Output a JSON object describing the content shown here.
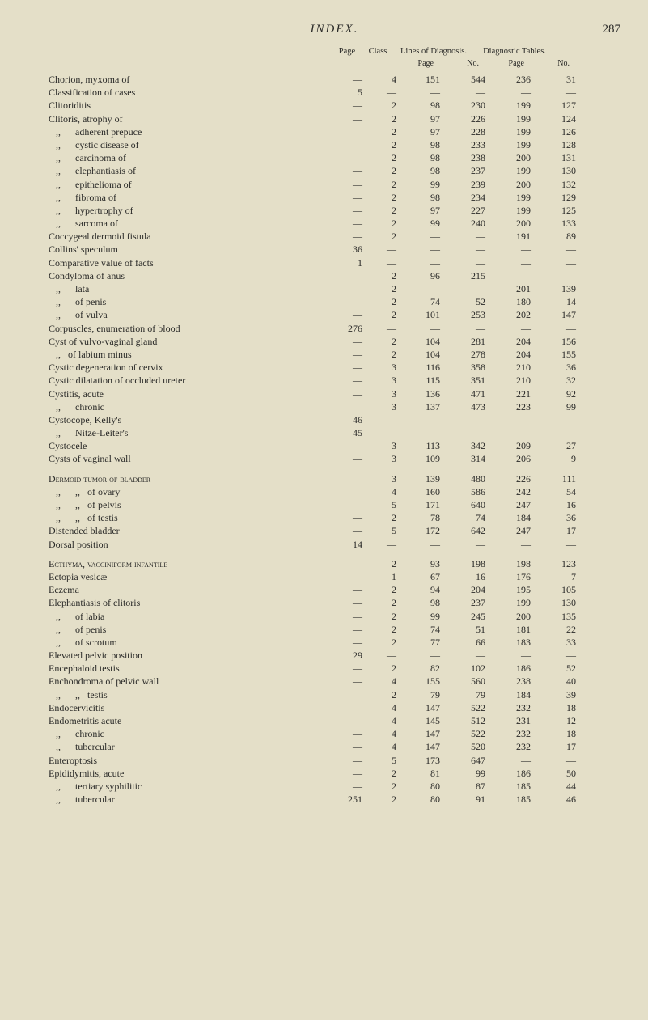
{
  "running_head": {
    "title": "INDEX.",
    "folio": "287"
  },
  "column_heads": {
    "page": "Page",
    "class": "Class",
    "lines_of_diagnosis": "Lines of Diagnosis.",
    "diagnostic_tables": "Diagnostic Tables.",
    "sub_page": "Page",
    "sub_no": "No."
  },
  "rows": [
    {
      "term": "Chorion, myxoma of",
      "page": "—",
      "class": "4",
      "dp": "151",
      "dn": "544",
      "tp": "236",
      "tn": "31"
    },
    {
      "term": "Classification of cases",
      "page": "5",
      "class": "—",
      "dp": "—",
      "dn": "—",
      "tp": "—",
      "tn": "—"
    },
    {
      "term": "Clitoriditis",
      "page": "—",
      "class": "2",
      "dp": "98",
      "dn": "230",
      "tp": "199",
      "tn": "127"
    },
    {
      "term": "Clitoris, atrophy of",
      "page": "—",
      "class": "2",
      "dp": "97",
      "dn": "226",
      "tp": "199",
      "tn": "124"
    },
    {
      "term": "   ,,      adherent prepuce",
      "page": "—",
      "class": "2",
      "dp": "97",
      "dn": "228",
      "tp": "199",
      "tn": "126"
    },
    {
      "term": "   ,,      cystic disease of",
      "page": "—",
      "class": "2",
      "dp": "98",
      "dn": "233",
      "tp": "199",
      "tn": "128"
    },
    {
      "term": "   ,,      carcinoma of",
      "page": "—",
      "class": "2",
      "dp": "98",
      "dn": "238",
      "tp": "200",
      "tn": "131"
    },
    {
      "term": "   ,,      elephantiasis of",
      "page": "—",
      "class": "2",
      "dp": "98",
      "dn": "237",
      "tp": "199",
      "tn": "130"
    },
    {
      "term": "   ,,      epithelioma of",
      "page": "—",
      "class": "2",
      "dp": "99",
      "dn": "239",
      "tp": "200",
      "tn": "132"
    },
    {
      "term": "   ,,      fibroma of",
      "page": "—",
      "class": "2",
      "dp": "98",
      "dn": "234",
      "tp": "199",
      "tn": "129"
    },
    {
      "term": "   ,,      hypertrophy of",
      "page": "—",
      "class": "2",
      "dp": "97",
      "dn": "227",
      "tp": "199",
      "tn": "125"
    },
    {
      "term": "   ,,      sarcoma of",
      "page": "—",
      "class": "2",
      "dp": "99",
      "dn": "240",
      "tp": "200",
      "tn": "133"
    },
    {
      "term": "Coccygeal dermoid fistula",
      "page": "—",
      "class": "2",
      "dp": "—",
      "dn": "—",
      "tp": "191",
      "tn": "89"
    },
    {
      "term": "Collins' speculum",
      "page": "36",
      "class": "—",
      "dp": "—",
      "dn": "—",
      "tp": "—",
      "tn": "—"
    },
    {
      "term": "Comparative value of facts",
      "page": "1",
      "class": "—",
      "dp": "—",
      "dn": "—",
      "tp": "—",
      "tn": "—"
    },
    {
      "term": "Condyloma of anus",
      "page": "—",
      "class": "2",
      "dp": "96",
      "dn": "215",
      "tp": "—",
      "tn": "—"
    },
    {
      "term": "   ,,      lata",
      "page": "—",
      "class": "2",
      "dp": "—",
      "dn": "—",
      "tp": "201",
      "tn": "139"
    },
    {
      "term": "   ,,      of penis",
      "page": "—",
      "class": "2",
      "dp": "74",
      "dn": "52",
      "tp": "180",
      "tn": "14"
    },
    {
      "term": "   ,,      of vulva",
      "page": "—",
      "class": "2",
      "dp": "101",
      "dn": "253",
      "tp": "202",
      "tn": "147"
    },
    {
      "term": "Corpuscles, enumeration of blood",
      "page": "276",
      "class": "—",
      "dp": "—",
      "dn": "—",
      "tp": "—",
      "tn": "—"
    },
    {
      "term": "Cyst of vulvo-vaginal gland",
      "page": "—",
      "class": "2",
      "dp": "104",
      "dn": "281",
      "tp": "204",
      "tn": "156"
    },
    {
      "term": "   ,,   of labium minus",
      "page": "—",
      "class": "2",
      "dp": "104",
      "dn": "278",
      "tp": "204",
      "tn": "155"
    },
    {
      "term": "Cystic degeneration of cervix",
      "page": "—",
      "class": "3",
      "dp": "116",
      "dn": "358",
      "tp": "210",
      "tn": "36"
    },
    {
      "term": "Cystic dilatation of occluded ureter",
      "page": "—",
      "class": "3",
      "dp": "115",
      "dn": "351",
      "tp": "210",
      "tn": "32"
    },
    {
      "term": "Cystitis, acute",
      "page": "—",
      "class": "3",
      "dp": "136",
      "dn": "471",
      "tp": "221",
      "tn": "92"
    },
    {
      "term": "   ,,      chronic",
      "page": "—",
      "class": "3",
      "dp": "137",
      "dn": "473",
      "tp": "223",
      "tn": "99"
    },
    {
      "term": "Cystocope, Kelly's",
      "page": "46",
      "class": "—",
      "dp": "—",
      "dn": "—",
      "tp": "—",
      "tn": "—"
    },
    {
      "term": "   ,,      Nitze-Leiter's",
      "page": "45",
      "class": "—",
      "dp": "—",
      "dn": "—",
      "tp": "—",
      "tn": "—"
    },
    {
      "term": "Cystocele",
      "page": "—",
      "class": "3",
      "dp": "113",
      "dn": "342",
      "tp": "209",
      "tn": "27"
    },
    {
      "term": "Cysts of vaginal wall",
      "page": "—",
      "class": "3",
      "dp": "109",
      "dn": "314",
      "tp": "206",
      "tn": "9"
    },
    {
      "spacer": true
    },
    {
      "term": "Dermoid tumor of bladder",
      "page": "—",
      "class": "3",
      "dp": "139",
      "dn": "480",
      "tp": "226",
      "tn": "111",
      "sc": true
    },
    {
      "term": "   ,,      ,,   of ovary",
      "page": "—",
      "class": "4",
      "dp": "160",
      "dn": "586",
      "tp": "242",
      "tn": "54"
    },
    {
      "term": "   ,,      ,,   of pelvis",
      "page": "—",
      "class": "5",
      "dp": "171",
      "dn": "640",
      "tp": "247",
      "tn": "16"
    },
    {
      "term": "   ,,      ,,   of testis",
      "page": "—",
      "class": "2",
      "dp": "78",
      "dn": "74",
      "tp": "184",
      "tn": "36"
    },
    {
      "term": "Distended bladder",
      "page": "—",
      "class": "5",
      "dp": "172",
      "dn": "642",
      "tp": "247",
      "tn": "17"
    },
    {
      "term": "Dorsal position",
      "page": "14",
      "class": "—",
      "dp": "—",
      "dn": "—",
      "tp": "—",
      "tn": "—"
    },
    {
      "spacer": true
    },
    {
      "term": "Ecthyma, vacciniform infantile",
      "page": "—",
      "class": "2",
      "dp": "93",
      "dn": "198",
      "tp": "198",
      "tn": "123",
      "sc": true
    },
    {
      "term": "Ectopia vesicæ",
      "page": "—",
      "class": "1",
      "dp": "67",
      "dn": "16",
      "tp": "176",
      "tn": "7"
    },
    {
      "term": "Eczema",
      "page": "—",
      "class": "2",
      "dp": "94",
      "dn": "204",
      "tp": "195",
      "tn": "105"
    },
    {
      "term": "Elephantiasis of clitoris",
      "page": "—",
      "class": "2",
      "dp": "98",
      "dn": "237",
      "tp": "199",
      "tn": "130"
    },
    {
      "term": "   ,,      of labia",
      "page": "—",
      "class": "2",
      "dp": "99",
      "dn": "245",
      "tp": "200",
      "tn": "135"
    },
    {
      "term": "   ,,      of penis",
      "page": "—",
      "class": "2",
      "dp": "74",
      "dn": "51",
      "tp": "181",
      "tn": "22"
    },
    {
      "term": "   ,,      of scrotum",
      "page": "—",
      "class": "2",
      "dp": "77",
      "dn": "66",
      "tp": "183",
      "tn": "33"
    },
    {
      "term": "Elevated pelvic position",
      "page": "29",
      "class": "—",
      "dp": "—",
      "dn": "—",
      "tp": "—",
      "tn": "—"
    },
    {
      "term": "Encephaloid testis",
      "page": "—",
      "class": "2",
      "dp": "82",
      "dn": "102",
      "tp": "186",
      "tn": "52"
    },
    {
      "term": "Enchondroma of pelvic wall",
      "page": "—",
      "class": "4",
      "dp": "155",
      "dn": "560",
      "tp": "238",
      "tn": "40"
    },
    {
      "term": "   ,,      ,,   testis",
      "page": "—",
      "class": "2",
      "dp": "79",
      "dn": "79",
      "tp": "184",
      "tn": "39"
    },
    {
      "term": "Endocervicitis",
      "page": "—",
      "class": "4",
      "dp": "147",
      "dn": "522",
      "tp": "232",
      "tn": "18"
    },
    {
      "term": "Endometritis acute",
      "page": "—",
      "class": "4",
      "dp": "145",
      "dn": "512",
      "tp": "231",
      "tn": "12"
    },
    {
      "term": "   ,,      chronic",
      "page": "—",
      "class": "4",
      "dp": "147",
      "dn": "522",
      "tp": "232",
      "tn": "18"
    },
    {
      "term": "   ,,      tubercular",
      "page": "—",
      "class": "4",
      "dp": "147",
      "dn": "520",
      "tp": "232",
      "tn": "17"
    },
    {
      "term": "Enteroptosis",
      "page": "—",
      "class": "5",
      "dp": "173",
      "dn": "647",
      "tp": "—",
      "tn": "—"
    },
    {
      "term": "Epididymitis, acute",
      "page": "—",
      "class": "2",
      "dp": "81",
      "dn": "99",
      "tp": "186",
      "tn": "50"
    },
    {
      "term": "   ,,      tertiary syphilitic",
      "page": "—",
      "class": "2",
      "dp": "80",
      "dn": "87",
      "tp": "185",
      "tn": "44"
    },
    {
      "term": "   ,,      tubercular",
      "page": "251",
      "class": "2",
      "dp": "80",
      "dn": "91",
      "tp": "185",
      "tn": "46"
    }
  ]
}
